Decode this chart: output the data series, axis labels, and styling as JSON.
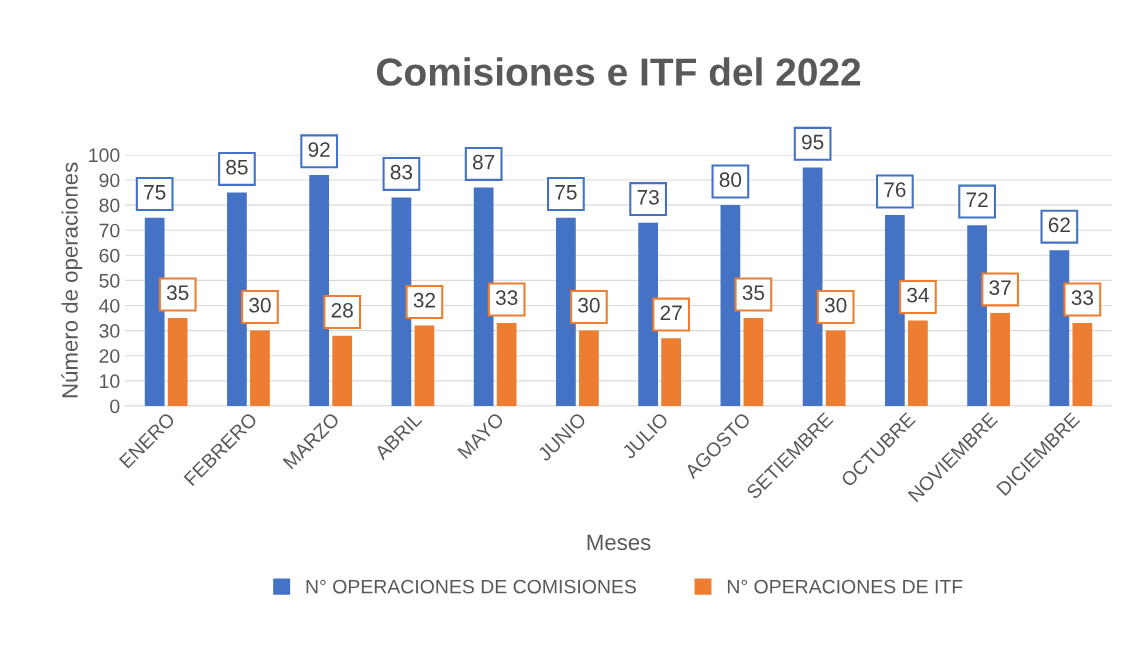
{
  "chart_data": {
    "type": "bar",
    "title": "Comisiones e ITF del 2022",
    "xlabel": "Meses",
    "ylabel": "Número de operaciones",
    "categories": [
      "ENERO",
      "FEBRERO",
      "MARZO",
      "ABRIL",
      "MAYO",
      "JUNIO",
      "JULIO",
      "AGOSTO",
      "SETIEMBRE",
      "OCTUBRE",
      "NOVIEMBRE",
      "DICIEMBRE"
    ],
    "series": [
      {
        "name": "N° OPERACIONES DE COMISIONES",
        "color": "#4472c4",
        "values": [
          75,
          85,
          92,
          83,
          87,
          75,
          73,
          80,
          95,
          76,
          72,
          62
        ]
      },
      {
        "name": "N° OPERACIONES DE ITF",
        "color": "#ed7d31",
        "values": [
          35,
          30,
          28,
          32,
          33,
          30,
          27,
          35,
          30,
          34,
          37,
          33
        ]
      }
    ],
    "ylim": [
      0,
      100
    ],
    "yticks": [
      0,
      10,
      20,
      30,
      40,
      50,
      60,
      70,
      80,
      90,
      100
    ],
    "grid": "y",
    "legend": "bottom",
    "data_labels": true
  }
}
